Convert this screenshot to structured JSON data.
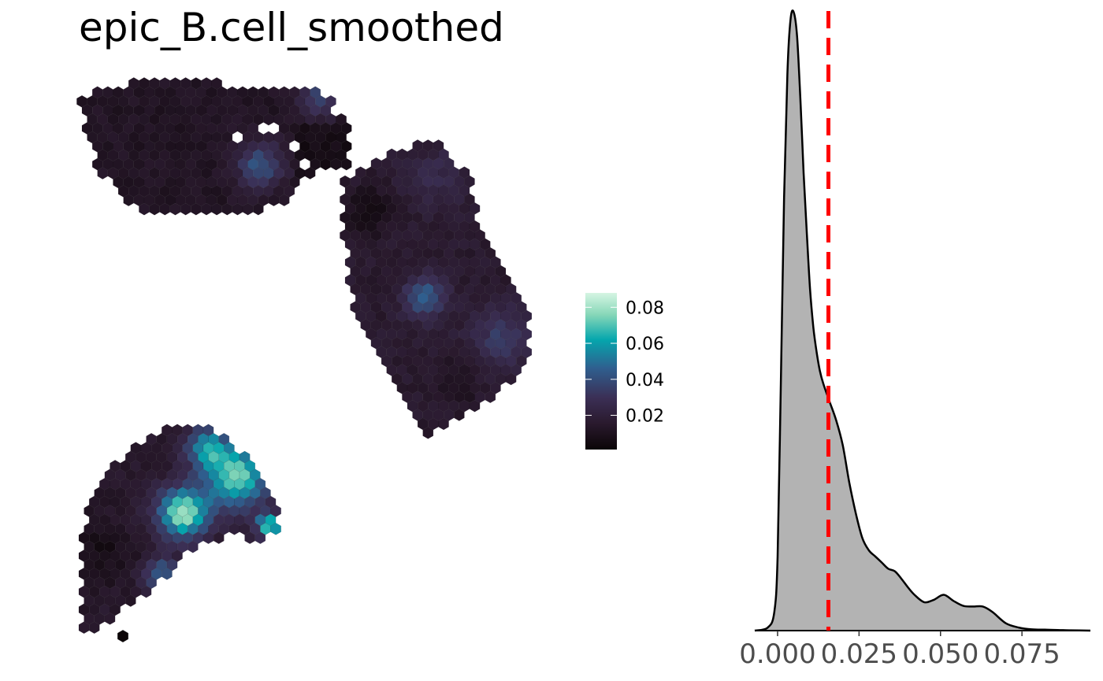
{
  "title": "epic_B.cell_smoothed",
  "colors": {
    "background": "#ffffff",
    "density_fill": "#b3b3b3",
    "density_line": "#000000",
    "threshold_line": "#ff0000",
    "colorscale": [
      "#0b0507",
      "#2a1a2e",
      "#3b2f55",
      "#2f5f8f",
      "#05a6ad",
      "#86d7b8",
      "#d6f5e3"
    ]
  },
  "chart_data": [
    {
      "type": "heatmap",
      "subtype": "spatial-hex-spots",
      "title": "epic_B.cell_smoothed",
      "value_range": [
        0.001,
        0.088
      ],
      "legend": {
        "placement": "right",
        "ticks": [
          "0.02",
          "0.04",
          "0.06",
          "0.08"
        ],
        "tick_values": [
          0.02,
          0.04,
          0.06,
          0.08
        ]
      },
      "regions": [
        {
          "name": "top-left tissue section",
          "typical_value": 0.012,
          "range": [
            0.003,
            0.04
          ]
        },
        {
          "name": "right tissue section",
          "typical_value": 0.018,
          "range": [
            0.004,
            0.045
          ]
        },
        {
          "name": "bottom-left tissue section",
          "typical_value": 0.035,
          "range": [
            0.008,
            0.088
          ]
        }
      ],
      "grid": false
    },
    {
      "type": "area",
      "subtype": "density",
      "xlim": [
        -0.007,
        0.096
      ],
      "x_ticks": [
        "0.000",
        "0.025",
        "0.050",
        "0.075"
      ],
      "x_tick_values": [
        0,
        0.025,
        0.05,
        0.075
      ],
      "threshold": 0.0156,
      "x": [
        -0.007,
        -0.003,
        -0.001,
        0.0,
        0.001,
        0.002,
        0.003,
        0.004,
        0.005,
        0.006,
        0.007,
        0.008,
        0.009,
        0.01,
        0.011,
        0.012,
        0.013,
        0.014,
        0.016,
        0.018,
        0.02,
        0.022,
        0.024,
        0.026,
        0.028,
        0.03,
        0.032,
        0.034,
        0.036,
        0.038,
        0.04,
        0.042,
        0.045,
        0.048,
        0.051,
        0.054,
        0.057,
        0.06,
        0.063,
        0.066,
        0.07,
        0.074,
        0.078,
        0.082,
        0.086,
        0.09,
        0.096
      ],
      "density": [
        0,
        0.5,
        3,
        12,
        40,
        70,
        90,
        99,
        100,
        96,
        86,
        74,
        64,
        55,
        49,
        45,
        42,
        40,
        37,
        34,
        30,
        24,
        19,
        15,
        13,
        12,
        11,
        10,
        9.6,
        8.4,
        7.0,
        5.8,
        4.6,
        5.0,
        5.8,
        4.8,
        4.0,
        3.9,
        3.9,
        3.0,
        1.2,
        0.5,
        0.2,
        0.15,
        0.1,
        0.05,
        0
      ],
      "grid": false
    }
  ]
}
